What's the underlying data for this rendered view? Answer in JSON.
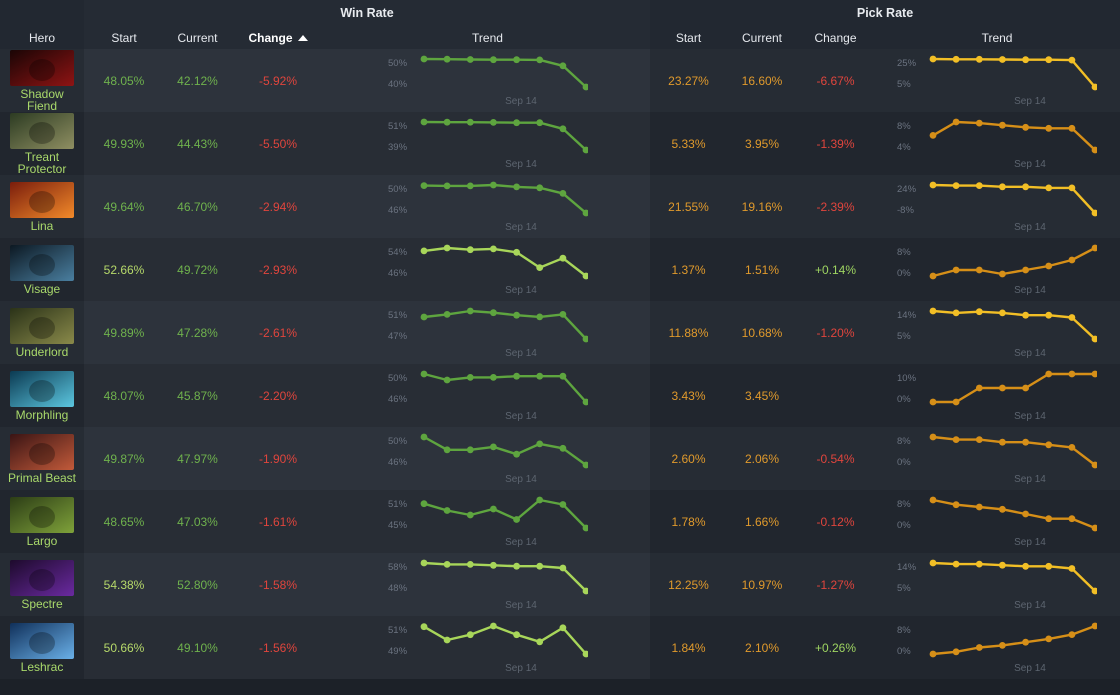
{
  "header": {
    "win_rate_group": "Win Rate",
    "pick_rate_group": "Pick Rate",
    "hero": "Hero",
    "wr_start": "Start",
    "wr_current": "Current",
    "wr_change": "Change",
    "wr_trend": "Trend",
    "pr_start": "Start",
    "pr_current": "Current",
    "pr_change": "Change",
    "pr_trend": "Trend",
    "sorted_column": "wr_change",
    "sort_direction": "ascending"
  },
  "colors": {
    "win_green": "#5ea53f",
    "win_light": "#a8d65a",
    "pick_orange": "#d68f18",
    "pick_yellow": "#f2bf26",
    "negative": "#e0453d",
    "positive": "#9ed461"
  },
  "trend_date_label": "Sep 14",
  "rows": [
    {
      "hero": "Shadow Fiend",
      "name_lines": [
        "Shadow",
        "Fiend"
      ],
      "portrait": [
        "#1a0505",
        "#8f1414"
      ],
      "wr_start": "48.05%",
      "wr_current": "42.12%",
      "wr_change": "-5.92%",
      "wr_style": "green",
      "wr_axis": [
        "50%",
        "40%"
      ],
      "wr_points": [
        48.05,
        48.0,
        47.95,
        47.9,
        47.9,
        47.85,
        46.6,
        42.12
      ],
      "pr_start": "23.27%",
      "pr_current": "16.60%",
      "pr_change": "-6.67%",
      "pr_change_sign": "neg",
      "pr_style": "yellow",
      "pr_axis": [
        "25%",
        "5%"
      ],
      "pr_points": [
        23.27,
        23.2,
        23.2,
        23.15,
        23.1,
        23.1,
        23.0,
        16.6
      ]
    },
    {
      "hero": "Treant Protector",
      "name_lines": [
        "Treant",
        "Protector"
      ],
      "portrait": [
        "#2c3b22",
        "#8f8f62"
      ],
      "wr_start": "49.93%",
      "wr_current": "44.43%",
      "wr_change": "-5.50%",
      "wr_style": "green",
      "wr_axis": [
        "51%",
        "39%"
      ],
      "wr_points": [
        49.93,
        49.9,
        49.9,
        49.85,
        49.8,
        49.8,
        48.6,
        44.43
      ],
      "pr_start": "5.33%",
      "pr_current": "3.95%",
      "pr_change": "-1.39%",
      "pr_change_sign": "neg",
      "pr_style": "orange",
      "pr_axis": [
        "8%",
        "4%"
      ],
      "pr_points": [
        5.33,
        6.6,
        6.5,
        6.3,
        6.1,
        6.0,
        6.0,
        3.95
      ]
    },
    {
      "hero": "Lina",
      "name_lines": [
        "Lina"
      ],
      "portrait": [
        "#7a1d0c",
        "#f28a2a"
      ],
      "wr_start": "49.64%",
      "wr_current": "46.70%",
      "wr_change": "-2.94%",
      "wr_style": "green",
      "wr_axis": [
        "50%",
        "46%"
      ],
      "wr_points": [
        49.64,
        49.6,
        49.6,
        49.7,
        49.5,
        49.4,
        48.8,
        46.7
      ],
      "pr_start": "21.55%",
      "pr_current": "19.16%",
      "pr_change": "-2.39%",
      "pr_change_sign": "neg",
      "pr_style": "yellow",
      "pr_axis": [
        "24%",
        "-8%"
      ],
      "pr_points": [
        21.55,
        21.5,
        21.5,
        21.4,
        21.4,
        21.3,
        21.3,
        19.16
      ]
    },
    {
      "hero": "Visage",
      "name_lines": [
        "Visage"
      ],
      "portrait": [
        "#0c1822",
        "#4a7fa0"
      ],
      "wr_start": "52.66%",
      "wr_current": "49.72%",
      "wr_change": "-2.93%",
      "wr_style": "light",
      "wr_axis": [
        "54%",
        "46%"
      ],
      "wr_points": [
        52.66,
        53.0,
        52.8,
        52.9,
        52.5,
        50.7,
        51.8,
        49.72
      ],
      "pr_start": "1.37%",
      "pr_current": "1.51%",
      "pr_change": "+0.14%",
      "pr_change_sign": "pos",
      "pr_style": "orange",
      "pr_axis": [
        "8%",
        "0%"
      ],
      "pr_points": [
        1.37,
        1.4,
        1.4,
        1.38,
        1.4,
        1.42,
        1.45,
        1.51
      ]
    },
    {
      "hero": "Underlord",
      "name_lines": [
        "Underlord"
      ],
      "portrait": [
        "#2a3218",
        "#8a8a4a"
      ],
      "wr_start": "49.89%",
      "wr_current": "47.28%",
      "wr_change": "-2.61%",
      "wr_style": "green",
      "wr_axis": [
        "51%",
        "47%"
      ],
      "wr_points": [
        49.89,
        50.2,
        50.6,
        50.4,
        50.1,
        49.9,
        50.2,
        47.28
      ],
      "pr_start": "11.88%",
      "pr_current": "10.68%",
      "pr_change": "-1.20%",
      "pr_change_sign": "neg",
      "pr_style": "yellow",
      "pr_axis": [
        "14%",
        "5%"
      ],
      "pr_points": [
        11.88,
        11.8,
        11.85,
        11.8,
        11.7,
        11.7,
        11.6,
        10.68
      ]
    },
    {
      "hero": "Morphling",
      "name_lines": [
        "Morphling"
      ],
      "portrait": [
        "#0b3a52",
        "#5cc7e0"
      ],
      "wr_start": "48.07%",
      "wr_current": "45.87%",
      "wr_change": "-2.20%",
      "wr_style": "green",
      "wr_axis": [
        "50%",
        "46%"
      ],
      "wr_points": [
        48.07,
        47.6,
        47.8,
        47.8,
        47.9,
        47.9,
        47.9,
        45.87
      ],
      "pr_start": "3.43%",
      "pr_current": "3.45%",
      "pr_change": "",
      "pr_change_sign": "none",
      "pr_style": "orange",
      "pr_axis": [
        "10%",
        "0%"
      ],
      "pr_points": [
        3.43,
        3.43,
        3.44,
        3.44,
        3.44,
        3.45,
        3.45,
        3.45
      ]
    },
    {
      "hero": "Primal Beast",
      "name_lines": [
        "Primal Beast"
      ],
      "portrait": [
        "#3a1414",
        "#c25a3a"
      ],
      "wr_start": "49.87%",
      "wr_current": "47.97%",
      "wr_change": "-1.90%",
      "wr_style": "green",
      "wr_axis": [
        "50%",
        "46%"
      ],
      "wr_points": [
        49.87,
        49.0,
        49.0,
        49.2,
        48.7,
        49.4,
        49.1,
        47.97
      ],
      "pr_start": "2.60%",
      "pr_current": "2.06%",
      "pr_change": "-0.54%",
      "pr_change_sign": "neg",
      "pr_style": "orange",
      "pr_axis": [
        "8%",
        "0%"
      ],
      "pr_points": [
        2.6,
        2.55,
        2.55,
        2.5,
        2.5,
        2.45,
        2.4,
        2.06
      ]
    },
    {
      "hero": "Largo",
      "name_lines": [
        "Largo"
      ],
      "portrait": [
        "#2c3d16",
        "#7fa23a"
      ],
      "wr_start": "48.65%",
      "wr_current": "47.03%",
      "wr_change": "-1.61%",
      "wr_style": "green",
      "wr_axis": [
        "51%",
        "45%"
      ],
      "wr_points": [
        48.65,
        48.2,
        47.9,
        48.3,
        47.6,
        48.9,
        48.6,
        47.03
      ],
      "pr_start": "1.78%",
      "pr_current": "1.66%",
      "pr_change": "-0.12%",
      "pr_change_sign": "neg",
      "pr_style": "orange",
      "pr_axis": [
        "8%",
        "0%"
      ],
      "pr_points": [
        1.78,
        1.76,
        1.75,
        1.74,
        1.72,
        1.7,
        1.7,
        1.66
      ]
    },
    {
      "hero": "Spectre",
      "name_lines": [
        "Spectre"
      ],
      "portrait": [
        "#1d0a2c",
        "#6a2aa0"
      ],
      "wr_start": "54.38%",
      "wr_current": "52.80%",
      "wr_change": "-1.58%",
      "wr_style": "light",
      "wr_axis": [
        "58%",
        "48%"
      ],
      "wr_points": [
        54.38,
        54.3,
        54.3,
        54.25,
        54.2,
        54.2,
        54.1,
        52.8
      ],
      "pr_start": "12.25%",
      "pr_current": "10.97%",
      "pr_change": "-1.27%",
      "pr_change_sign": "neg",
      "pr_style": "yellow",
      "pr_axis": [
        "14%",
        "5%"
      ],
      "pr_points": [
        12.25,
        12.2,
        12.2,
        12.15,
        12.1,
        12.1,
        12.0,
        10.97
      ]
    },
    {
      "hero": "Leshrac",
      "name_lines": [
        "Leshrac"
      ],
      "portrait": [
        "#10305a",
        "#6ab0e8"
      ],
      "wr_start": "50.66%",
      "wr_current": "49.10%",
      "wr_change": "-1.56%",
      "wr_style": "light",
      "wr_axis": [
        "51%",
        "49%"
      ],
      "wr_points": [
        50.66,
        49.9,
        50.2,
        50.7,
        50.2,
        49.8,
        50.6,
        49.1
      ],
      "pr_start": "1.84%",
      "pr_current": "2.10%",
      "pr_change": "+0.26%",
      "pr_change_sign": "pos",
      "pr_style": "orange",
      "pr_axis": [
        "8%",
        "0%"
      ],
      "pr_points": [
        1.84,
        1.86,
        1.9,
        1.92,
        1.95,
        1.98,
        2.02,
        2.1
      ]
    }
  ]
}
